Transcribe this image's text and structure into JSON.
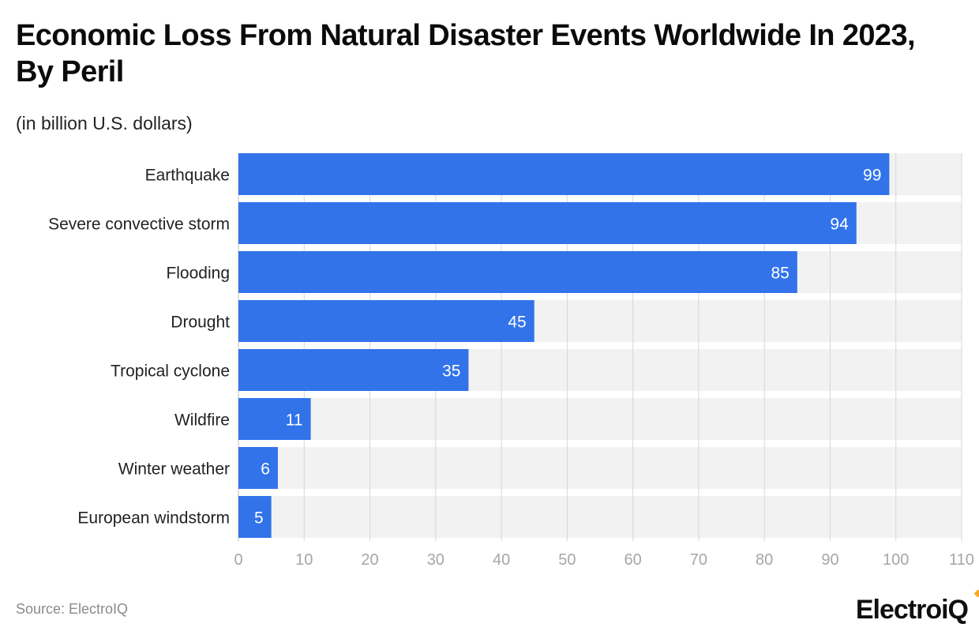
{
  "header": {
    "title": "Economic Loss From Natural Disaster Events Worldwide In 2023, By Peril",
    "subtitle": "(in billion U.S. dollars)"
  },
  "footer": {
    "source": "Source: ElectroIQ",
    "brand_logo_text": "ElectroiQ"
  },
  "colors": {
    "bar": "#3273ea",
    "band": "#f2f2f2",
    "grid": "#d6d6d6",
    "value_label": "#ffffff",
    "category_label": "#222222",
    "tick_label": "#a6a6a6",
    "brand_accent": "#f5a623"
  },
  "chart_data": {
    "type": "bar",
    "orientation": "horizontal",
    "categories": [
      "Earthquake",
      "Severe convective storm",
      "Flooding",
      "Drought",
      "Tropical cyclone",
      "Wildfire",
      "Winter weather",
      "European windstorm"
    ],
    "values": [
      99,
      94,
      85,
      45,
      35,
      11,
      6,
      5
    ],
    "title": "Economic Loss From Natural Disaster Events Worldwide In 2023, By Peril",
    "subtitle": "(in billion U.S. dollars)",
    "xlim": [
      0,
      110
    ],
    "xticks": [
      0,
      10,
      20,
      30,
      40,
      50,
      60,
      70,
      80,
      90,
      100,
      110
    ],
    "grid": true,
    "data_labels": true
  }
}
